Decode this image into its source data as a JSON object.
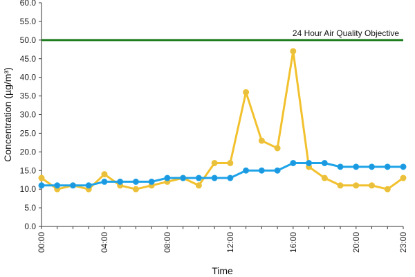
{
  "chart_data": {
    "type": "line",
    "xlabel": "Time",
    "ylabel": "Concentration (µg/m³)",
    "ylim": [
      0,
      60
    ],
    "y_ticks": [
      "0.0",
      "5.0",
      "10.0",
      "15.0",
      "20.0",
      "25.0",
      "30.0",
      "35.0",
      "40.0",
      "45.0",
      "50.0",
      "55.0",
      "60.0"
    ],
    "x_hours": [
      0,
      1,
      2,
      3,
      4,
      5,
      6,
      7,
      8,
      9,
      10,
      11,
      12,
      13,
      14,
      15,
      16,
      17,
      18,
      19,
      20,
      21,
      22,
      23
    ],
    "x_tick_labels": [
      {
        "hour": 0,
        "label": "00:00"
      },
      {
        "hour": 4,
        "label": "04:00"
      },
      {
        "hour": 8,
        "label": "08:00"
      },
      {
        "hour": 12,
        "label": "12:00"
      },
      {
        "hour": 16,
        "label": "16:00"
      },
      {
        "hour": 20,
        "label": "20:00"
      },
      {
        "hour": 23,
        "label": "23:00"
      }
    ],
    "grid": false,
    "legend": "none",
    "series": [
      {
        "color": "#f2c12e",
        "marker_fill": "#e8c040",
        "values": [
          13,
          10,
          11,
          10,
          14,
          11,
          10,
          11,
          12,
          13,
          11,
          17,
          17,
          36,
          23,
          21,
          47,
          16,
          13,
          11,
          11,
          11,
          10,
          13
        ]
      },
      {
        "color": "#1fa3e8",
        "marker_fill": "#1b98e0",
        "values": [
          11,
          11,
          11,
          11,
          12,
          12,
          12,
          12,
          13,
          13,
          13,
          13,
          13,
          15,
          15,
          15,
          17,
          17,
          17,
          16,
          16,
          16,
          16,
          16
        ]
      }
    ],
    "reference_line": {
      "value": 50,
      "label": "24 Hour Air Quality Objective",
      "color": "#1e7d1e"
    }
  }
}
